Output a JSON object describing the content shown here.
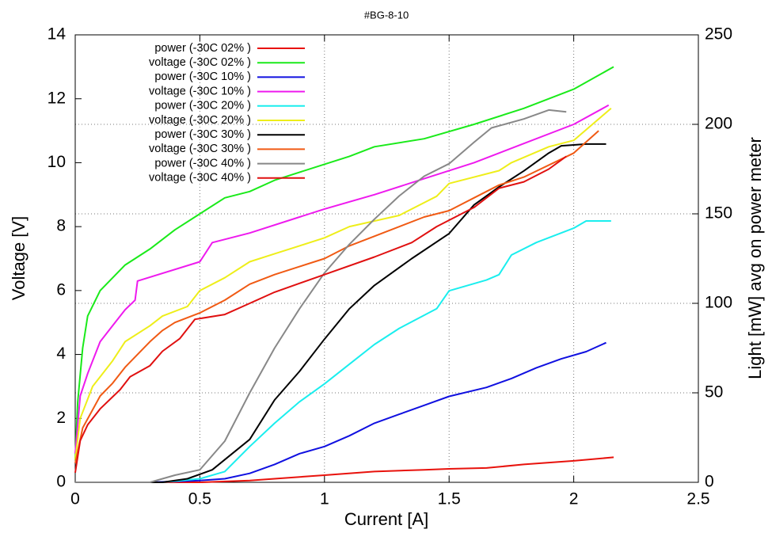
{
  "chart_data": {
    "type": "line",
    "title": "#BG-8-10",
    "x_label": "Current [A]",
    "y_label": "Voltage [V]",
    "y2_label": "Light [mW] avg on power meter",
    "xlim": [
      0,
      2.5
    ],
    "xticks": [
      0,
      0.5,
      1,
      1.5,
      2,
      2.5
    ],
    "ylim": [
      0,
      14
    ],
    "yticks": [
      0,
      2,
      4,
      6,
      8,
      10,
      12,
      14
    ],
    "y2lim": [
      0,
      250
    ],
    "y2ticks": [
      0,
      50,
      100,
      150,
      200,
      250
    ],
    "xgrid": true,
    "y2grid": true,
    "legend": "upper left",
    "series": [
      {
        "name": "power (-30C 02% )",
        "color": "#e8120c",
        "axis": "y2",
        "x": [
          0,
          0.5,
          0.7,
          0.8,
          1.0,
          1.2,
          1.4,
          1.5,
          1.65,
          1.8,
          2.0,
          2.16
        ],
        "values": [
          0,
          0,
          1,
          2,
          4,
          6,
          7,
          7.5,
          8,
          10,
          12,
          14
        ]
      },
      {
        "name": "voltage (-30C 02% )",
        "color": "#1aea1a",
        "axis": "y",
        "x": [
          0,
          0.01,
          0.03,
          0.05,
          0.1,
          0.2,
          0.3,
          0.4,
          0.5,
          0.6,
          0.7,
          0.8,
          1.0,
          1.1,
          1.2,
          1.4,
          1.6,
          1.8,
          2.0,
          2.16
        ],
        "values": [
          0.7,
          2.5,
          4.2,
          5.2,
          6.0,
          6.8,
          7.3,
          7.9,
          8.4,
          8.9,
          9.1,
          9.45,
          9.95,
          10.2,
          10.5,
          10.75,
          11.2,
          11.7,
          12.3,
          13.0
        ]
      },
      {
        "name": "power (-30C 10% )",
        "color": "#1010e0",
        "axis": "y2",
        "x": [
          0,
          0.3,
          0.5,
          0.6,
          0.7,
          0.8,
          0.9,
          1.0,
          1.1,
          1.2,
          1.3,
          1.4,
          1.5,
          1.65,
          1.75,
          1.85,
          1.95,
          2.05,
          2.13
        ],
        "values": [
          0,
          0,
          1,
          2,
          5,
          10,
          16,
          20,
          26,
          33,
          38,
          43,
          48,
          53,
          58,
          64,
          69,
          73,
          78
        ]
      },
      {
        "name": "voltage (-30C 10% )",
        "color": "#ee1aee",
        "axis": "y",
        "x": [
          0,
          0.02,
          0.05,
          0.1,
          0.15,
          0.2,
          0.24,
          0.25,
          0.5,
          0.55,
          0.7,
          0.9,
          1.0,
          1.2,
          1.4,
          1.6,
          1.8,
          2.0,
          2.14
        ],
        "values": [
          0.9,
          2.7,
          3.4,
          4.4,
          4.9,
          5.4,
          5.7,
          6.3,
          6.9,
          7.5,
          7.8,
          8.3,
          8.55,
          9.0,
          9.5,
          10.0,
          10.6,
          11.2,
          11.8
        ]
      },
      {
        "name": "power (-30C 20% )",
        "color": "#1aeeee",
        "axis": "y2",
        "x": [
          0,
          0.35,
          0.5,
          0.6,
          0.7,
          0.8,
          0.9,
          1.0,
          1.1,
          1.2,
          1.3,
          1.45,
          1.5,
          1.65,
          1.7,
          1.75,
          1.85,
          2.0,
          2.05,
          2.15
        ],
        "values": [
          0,
          0,
          2,
          6,
          20,
          33,
          45,
          55,
          66,
          77,
          86,
          97,
          107,
          113,
          116,
          127,
          134,
          142,
          146,
          146
        ]
      },
      {
        "name": "voltage (-30C 20% )",
        "color": "#eeee1a",
        "axis": "y",
        "x": [
          0,
          0.02,
          0.07,
          0.1,
          0.15,
          0.2,
          0.3,
          0.35,
          0.45,
          0.5,
          0.6,
          0.7,
          0.8,
          0.9,
          1.0,
          1.1,
          1.3,
          1.45,
          1.5,
          1.7,
          1.75,
          1.9,
          2.0,
          2.15
        ],
        "values": [
          0.7,
          2.0,
          3.0,
          3.3,
          3.8,
          4.4,
          4.9,
          5.2,
          5.5,
          6.0,
          6.4,
          6.9,
          7.15,
          7.4,
          7.65,
          8.0,
          8.35,
          8.95,
          9.35,
          9.75,
          10.0,
          10.5,
          10.7,
          11.7
        ]
      },
      {
        "name": "power (-30C 30% )",
        "color": "#000000",
        "axis": "y2",
        "x": [
          0,
          0.35,
          0.45,
          0.55,
          0.7,
          0.8,
          0.9,
          1.0,
          1.1,
          1.2,
          1.35,
          1.5,
          1.6,
          1.7,
          1.8,
          1.9,
          1.95,
          2.05,
          2.13
        ],
        "values": [
          0,
          0,
          2,
          7,
          24,
          46,
          62,
          80,
          97,
          110,
          125,
          139,
          155,
          165,
          174,
          184,
          188,
          189,
          189
        ]
      },
      {
        "name": "voltage (-30C 30% )",
        "color": "#f05a14",
        "axis": "y",
        "x": [
          0,
          0.03,
          0.1,
          0.15,
          0.2,
          0.25,
          0.3,
          0.35,
          0.4,
          0.5,
          0.6,
          0.7,
          0.8,
          0.9,
          1.0,
          1.1,
          1.2,
          1.4,
          1.5,
          1.6,
          1.7,
          1.8,
          2.0,
          2.1
        ],
        "values": [
          0.6,
          1.7,
          2.7,
          3.1,
          3.6,
          4.0,
          4.4,
          4.75,
          5.0,
          5.3,
          5.7,
          6.2,
          6.5,
          6.75,
          7.0,
          7.4,
          7.7,
          8.3,
          8.5,
          8.9,
          9.3,
          9.55,
          10.3,
          11.0
        ]
      },
      {
        "name": "power (-30C 40% )",
        "color": "#888888",
        "axis": "y2",
        "x": [
          0,
          0.3,
          0.4,
          0.5,
          0.6,
          0.7,
          0.8,
          0.9,
          1.0,
          1.1,
          1.2,
          1.3,
          1.4,
          1.5,
          1.6,
          1.67,
          1.8,
          1.9,
          1.97
        ],
        "values": [
          0,
          0,
          4,
          7,
          23,
          50,
          75,
          97,
          117,
          133,
          147,
          160,
          171,
          178,
          190,
          198,
          203,
          208,
          207
        ]
      },
      {
        "name": "voltage (-30C 40% )",
        "color": "#e01010",
        "axis": "y",
        "x": [
          0,
          0.02,
          0.05,
          0.1,
          0.18,
          0.22,
          0.3,
          0.35,
          0.42,
          0.48,
          0.6,
          0.7,
          0.8,
          1.0,
          1.2,
          1.35,
          1.45,
          1.6,
          1.7,
          1.8,
          1.9,
          1.97
        ],
        "values": [
          0.3,
          1.3,
          1.8,
          2.3,
          2.9,
          3.3,
          3.65,
          4.1,
          4.5,
          5.1,
          5.25,
          5.6,
          5.95,
          6.5,
          7.05,
          7.5,
          8.0,
          8.6,
          9.2,
          9.4,
          9.8,
          10.2
        ]
      }
    ]
  }
}
